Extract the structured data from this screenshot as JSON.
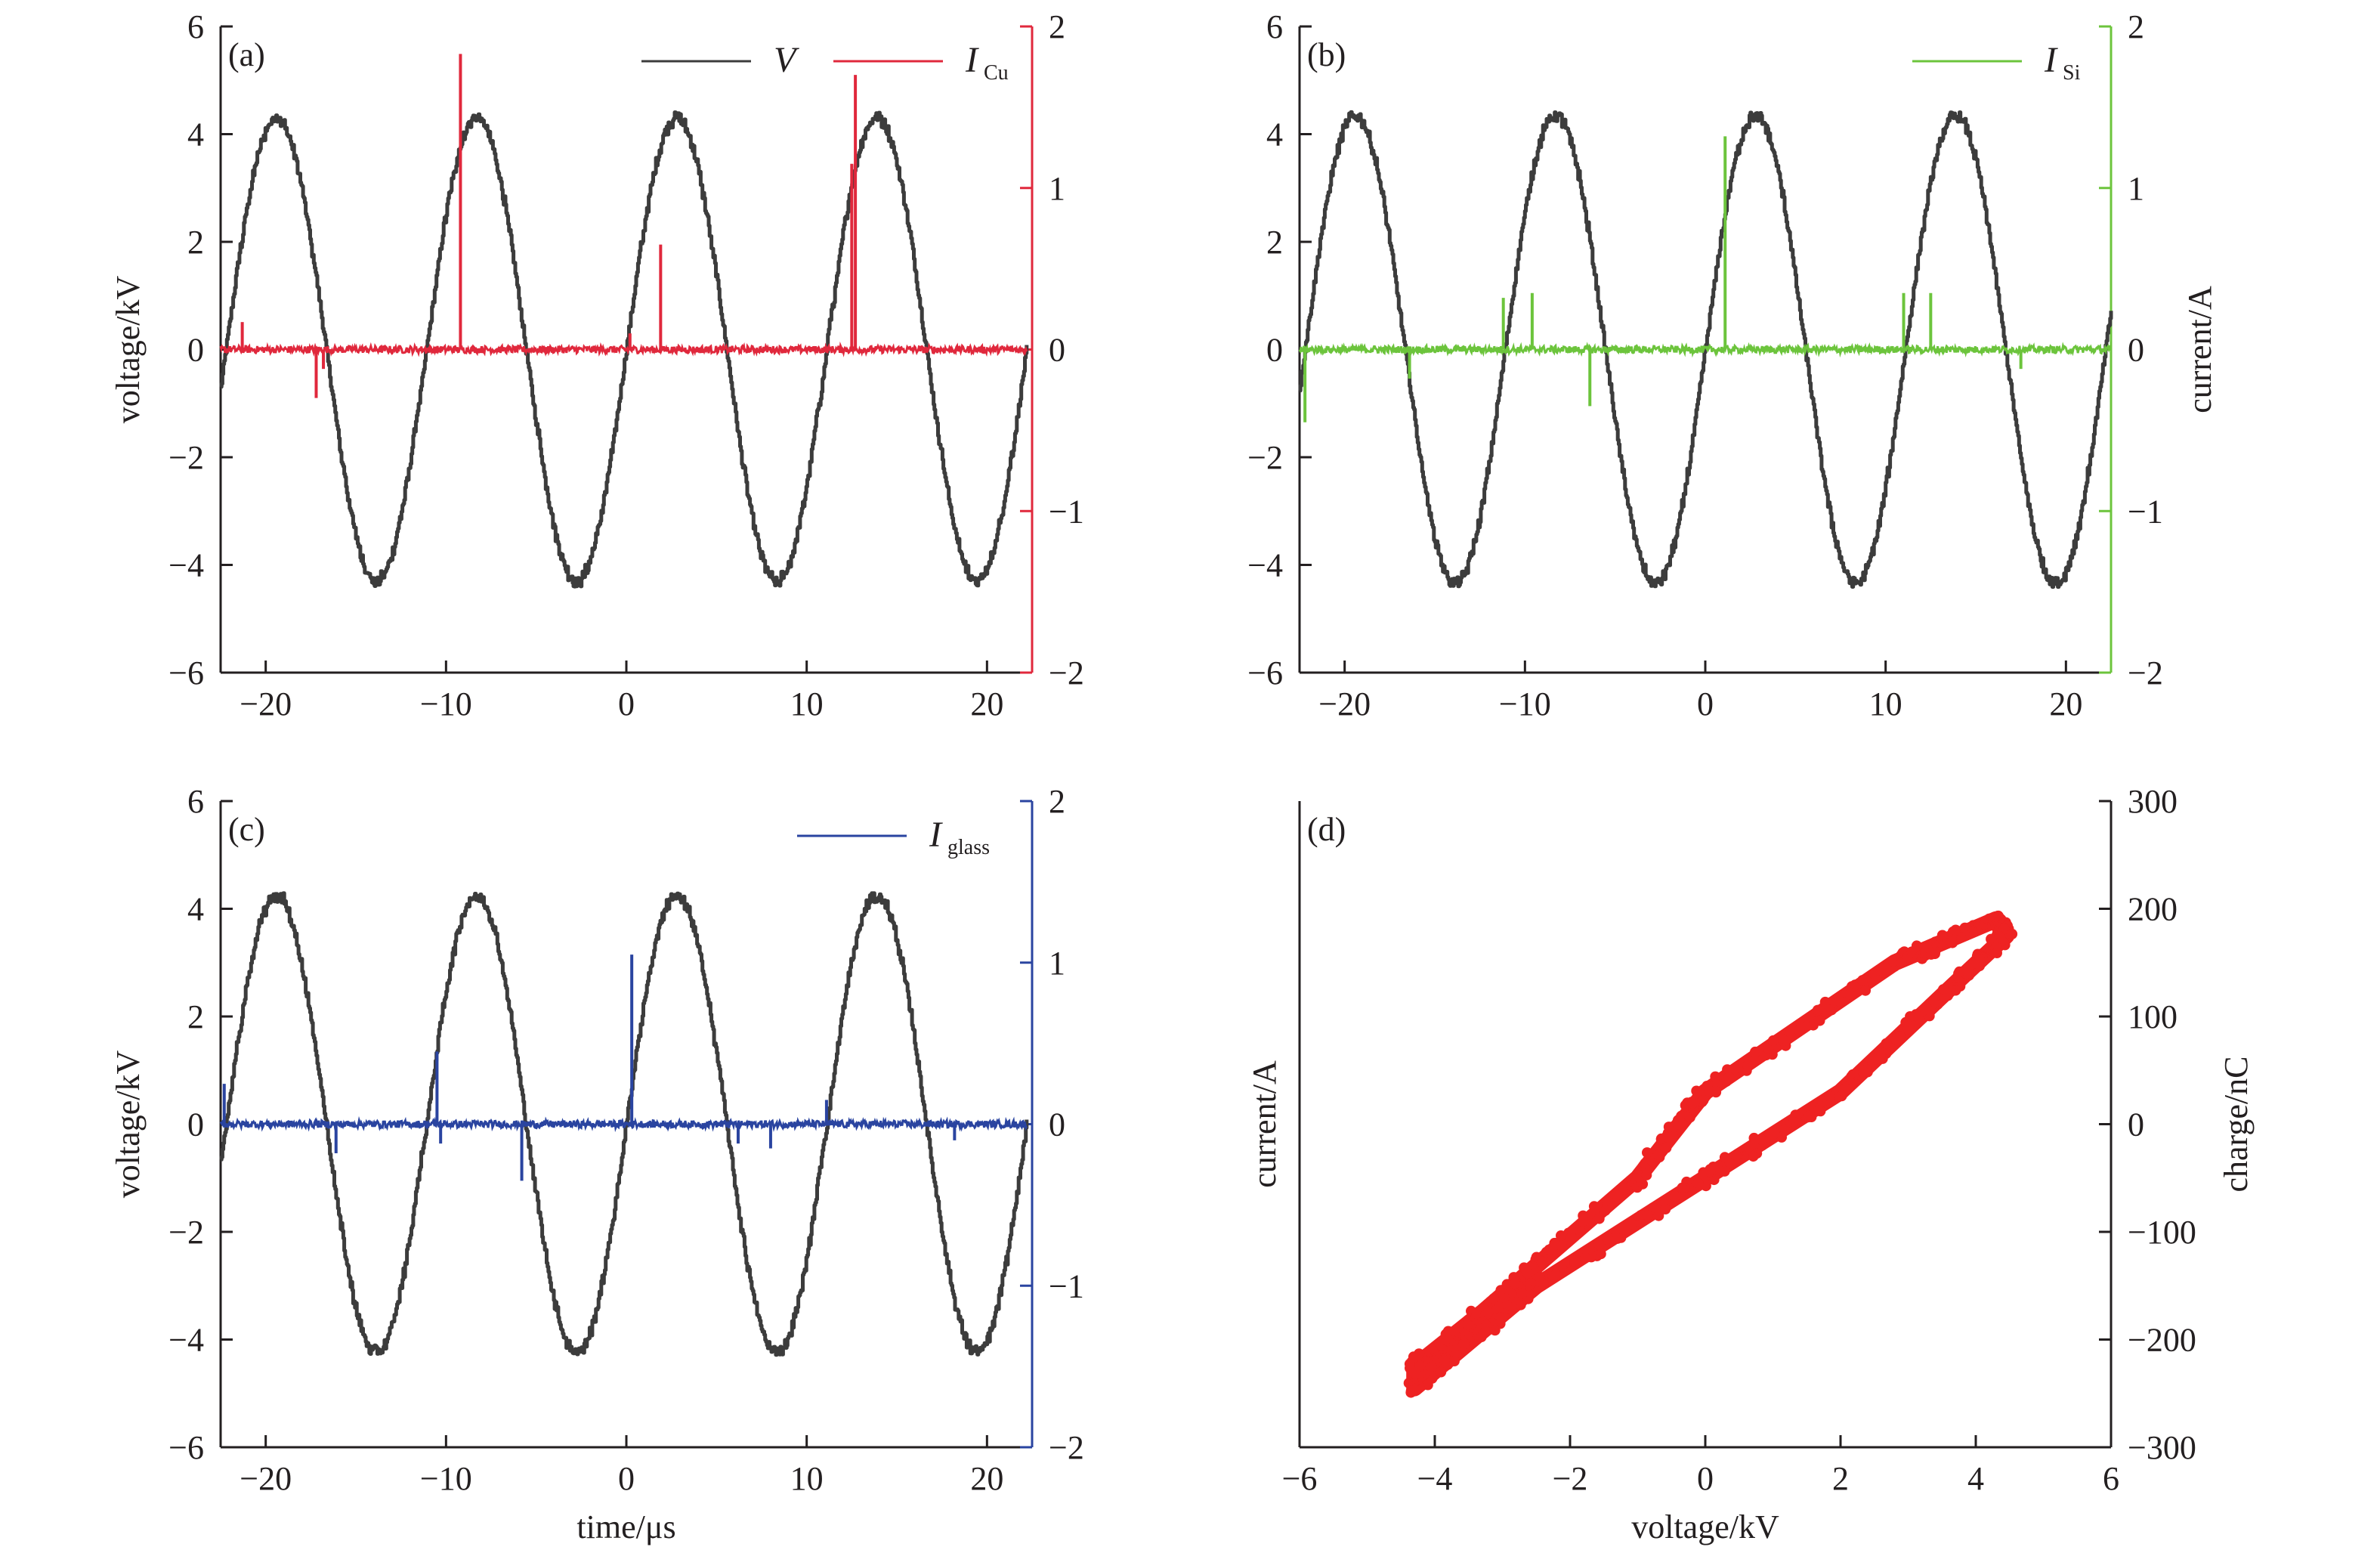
{
  "colors": {
    "axis": "#231f20",
    "voltage": "#3c3c3c",
    "cu": "#e0283c",
    "si": "#6cc43c",
    "glass": "#2a44a0",
    "lissajous": "#ee2222"
  },
  "chart_data": [
    {
      "id": "a",
      "panel_label": "(a)",
      "type": "line",
      "xlabel": "",
      "ylabel": "voltage/kV",
      "y2label": "",
      "xlim": [
        -22.5,
        22.5
      ],
      "ylim": [
        -6,
        6
      ],
      "y2lim": [
        -2,
        2
      ],
      "x_ticks": [
        "−20",
        "−10",
        "0",
        "10",
        "20"
      ],
      "y_ticks": [
        "−6",
        "−4",
        "−2",
        "0",
        "2",
        "4",
        "6"
      ],
      "y2_ticks": [
        "−2",
        "−1",
        "0",
        "1",
        "2"
      ],
      "y2_axis_color": "#e0283c",
      "legend": [
        {
          "label": "V",
          "subscript": "",
          "color": "#3c3c3c"
        },
        {
          "label": "I",
          "subscript": "Cu",
          "color": "#e0283c"
        }
      ],
      "voltage_wave": {
        "amplitude_kV": 4.3,
        "period_us": 11.1,
        "zero_up_crossing_us": 0.0,
        "x_range": [
          -22.5,
          22.2
        ]
      },
      "current_series": {
        "name": "I_Cu",
        "color": "#e0283c",
        "baseline_A": 0.0,
        "x_range": [
          -22.5,
          22.2
        ],
        "spikes": [
          {
            "x": -21.3,
            "y": 0.17
          },
          {
            "x": -17.2,
            "y": -0.3
          },
          {
            "x": -16.8,
            "y": -0.12
          },
          {
            "x": -9.2,
            "y": 1.83
          },
          {
            "x": 0.2,
            "y": 0.1
          },
          {
            "x": 1.9,
            "y": 0.65
          },
          {
            "x": 12.7,
            "y": 1.7
          },
          {
            "x": 12.5,
            "y": 1.15
          }
        ]
      }
    },
    {
      "id": "b",
      "panel_label": "(b)",
      "type": "line",
      "xlabel": "",
      "ylabel": "",
      "y2label": "current/A",
      "xlim": [
        -22.5,
        22.5
      ],
      "ylim": [
        -6,
        6
      ],
      "y2lim": [
        -2,
        2
      ],
      "x_ticks": [
        "−20",
        "−10",
        "0",
        "10",
        "20"
      ],
      "y_ticks": [
        "−6",
        "−4",
        "−2",
        "0",
        "2",
        "4",
        "6"
      ],
      "y2_ticks": [
        "−2",
        "−1",
        "0",
        "1",
        "2"
      ],
      "y2_axis_color": "#6cc43c",
      "legend": [
        {
          "label": "I",
          "subscript": "Si",
          "color": "#6cc43c"
        }
      ],
      "voltage_wave": {
        "amplitude_kV": 4.35,
        "period_us": 11.1,
        "zero_up_crossing_us": 0.0,
        "x_range": [
          -22.5,
          22.5
        ]
      },
      "current_series": {
        "name": "I_Si",
        "color": "#6cc43c",
        "baseline_A": 0.0,
        "x_range": [
          -22.5,
          22.5
        ],
        "spikes": [
          {
            "x": -22.2,
            "y": -0.45
          },
          {
            "x": -16.4,
            "y": -0.18
          },
          {
            "x": -11.2,
            "y": 0.32
          },
          {
            "x": -9.6,
            "y": 0.35
          },
          {
            "x": -6.4,
            "y": -0.35
          },
          {
            "x": 1.1,
            "y": 1.32
          },
          {
            "x": 11.0,
            "y": 0.35
          },
          {
            "x": 12.5,
            "y": 0.35
          },
          {
            "x": 17.5,
            "y": -0.12
          }
        ]
      }
    },
    {
      "id": "c",
      "panel_label": "(c)",
      "type": "line",
      "xlabel": "time/μs",
      "ylabel": "voltage/kV",
      "y2label": "",
      "xlim": [
        -22.5,
        22.5
      ],
      "ylim": [
        -6,
        6
      ],
      "y2lim": [
        -2,
        2
      ],
      "x_ticks": [
        "−20",
        "−10",
        "0",
        "10",
        "20"
      ],
      "y_ticks": [
        "−6",
        "−4",
        "−2",
        "0",
        "2",
        "4",
        "6"
      ],
      "y2_ticks": [
        "−2",
        "−1",
        "0",
        "1",
        "2"
      ],
      "y2_axis_color": "#2a44a0",
      "legend": [
        {
          "label": "I",
          "subscript": "glass",
          "color": "#2a44a0"
        }
      ],
      "voltage_wave": {
        "amplitude_kV": 4.25,
        "period_us": 11.1,
        "zero_up_crossing_us": 0.0,
        "x_range": [
          -22.5,
          22.2
        ]
      },
      "current_series": {
        "name": "I_glass",
        "color": "#2a44a0",
        "baseline_A": 0.0,
        "x_range": [
          -22.5,
          22.2
        ],
        "spikes": [
          {
            "x": -22.3,
            "y": 0.25
          },
          {
            "x": -16.1,
            "y": -0.18
          },
          {
            "x": -10.5,
            "y": 0.45
          },
          {
            "x": -10.3,
            "y": -0.12
          },
          {
            "x": -5.8,
            "y": -0.35
          },
          {
            "x": 0.3,
            "y": 1.05
          },
          {
            "x": 6.2,
            "y": -0.12
          },
          {
            "x": 8.0,
            "y": -0.15
          },
          {
            "x": 11.1,
            "y": 0.15
          },
          {
            "x": 18.2,
            "y": -0.1
          }
        ]
      }
    },
    {
      "id": "d",
      "panel_label": "(d)",
      "type": "scatter",
      "xlabel": "voltage/kV",
      "ylabel": "current/A",
      "y2label": "charge/nC",
      "xlim": [
        -6,
        6
      ],
      "y2lim": [
        -300,
        300
      ],
      "x_ticks": [
        "−6",
        "−4",
        "−2",
        "0",
        "2",
        "4",
        "6"
      ],
      "y2_ticks": [
        "−300",
        "−200",
        "−100",
        "0",
        "100",
        "200",
        "300"
      ],
      "color": "#ee2222",
      "lissajous": {
        "vertices_kV_nC": [
          {
            "x": -4.3,
            "y": -225
          },
          {
            "x": -3.3,
            "y": -175
          },
          {
            "x": -1.0,
            "y": -50
          },
          {
            "x": 0.0,
            "y": 30
          },
          {
            "x": 2.8,
            "y": 150
          },
          {
            "x": 4.3,
            "y": 190
          },
          {
            "x": 4.45,
            "y": 175
          },
          {
            "x": 3.6,
            "y": 125
          },
          {
            "x": 2.0,
            "y": 30
          },
          {
            "x": 0.0,
            "y": -50
          },
          {
            "x": -2.5,
            "y": -150
          },
          {
            "x": -4.3,
            "y": -245
          }
        ]
      }
    }
  ]
}
